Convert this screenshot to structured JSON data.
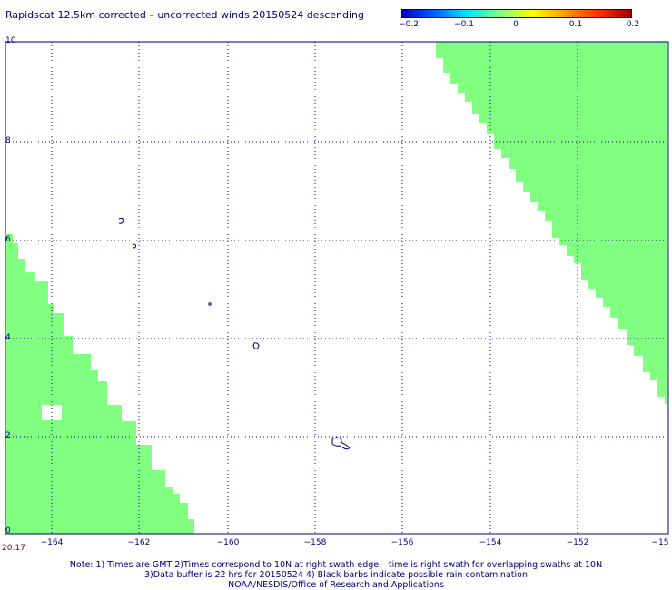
{
  "title": "Rapidscat 12.5km corrected – uncorrected winds 20150524 descending",
  "colorbar": {
    "ticks": [
      "−0.2",
      "−0.1",
      "0",
      "0.1",
      "0.2"
    ],
    "stops": [
      "#0000c8",
      "#0064ff",
      "#00e6ff",
      "#7fff7f",
      "#ffff00",
      "#ff9600",
      "#ff3200",
      "#a00000"
    ]
  },
  "axes": {
    "y_ticks": [
      "10",
      "8",
      "6",
      "4",
      "2",
      "0"
    ],
    "x_ticks": [
      "−164",
      "−162",
      "−160",
      "−158",
      "−156",
      "−154",
      "−152",
      "−15"
    ]
  },
  "swath_color": "#80ff80",
  "coast_color": "#000080",
  "time_label": "20:17",
  "notes": [
    "Note: 1) Times are GMT 2)Times correspond to 10N at right swath edge – time is right swath for overlapping swaths at 10N",
    "3)Data buffer is 22 hrs for 20150524 4) Black barbs indicate possible rain contamination",
    "NOAA/NESDIS/Office of Research and Applications"
  ]
}
